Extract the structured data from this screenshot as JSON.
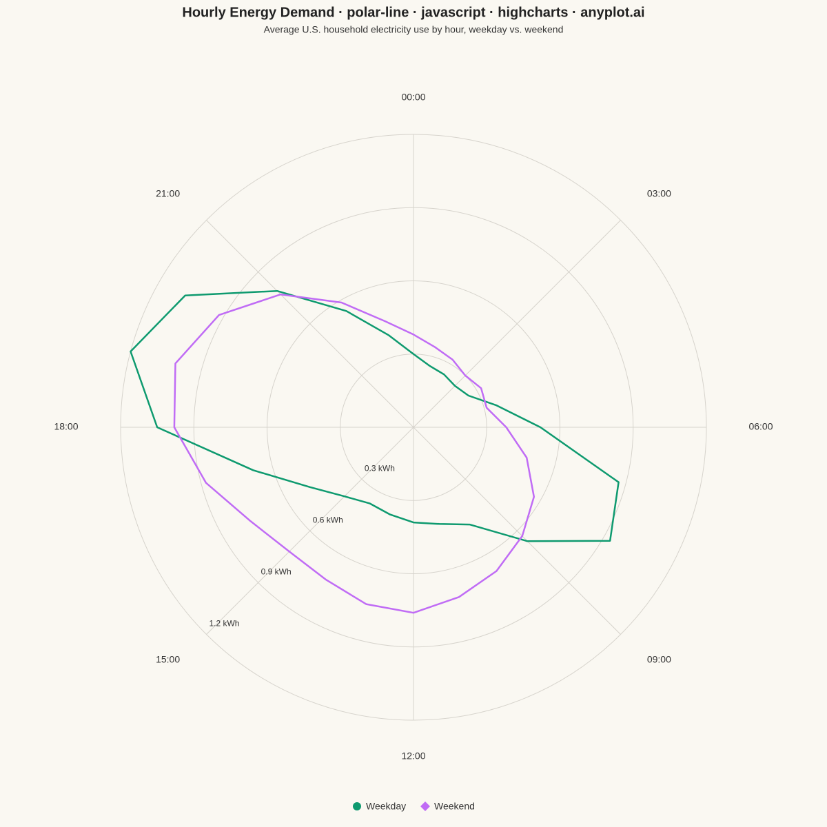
{
  "chart_data": {
    "type": "polar-line",
    "title": "Hourly Energy Demand · polar-line · javascript · highcharts · anyplot.ai",
    "subtitle": "Average U.S. household electricity use by hour, weekday vs. weekend",
    "categories": [
      "00:00",
      null,
      null,
      "03:00",
      null,
      null,
      "06:00",
      null,
      null,
      "09:00",
      null,
      null,
      "12:00",
      null,
      null,
      "15:00",
      null,
      null,
      "18:00",
      null,
      null,
      "21:00",
      null,
      null
    ],
    "series": [
      {
        "name": "Weekday",
        "color": "#0e9a6f",
        "values": [
          0.3,
          0.26,
          0.25,
          0.24,
          0.26,
          0.35,
          0.52,
          0.87,
          0.93,
          0.66,
          0.46,
          0.41,
          0.39,
          0.37,
          0.36,
          0.4,
          0.49,
          0.68,
          1.05,
          1.2,
          1.08,
          0.79,
          0.55,
          0.39
        ]
      },
      {
        "name": "Weekend",
        "color": "#c06cf5",
        "values": [
          0.38,
          0.34,
          0.32,
          0.3,
          0.32,
          0.31,
          0.38,
          0.48,
          0.57,
          0.63,
          0.68,
          0.72,
          0.76,
          0.75,
          0.72,
          0.72,
          0.77,
          0.88,
          0.98,
          1.01,
          0.92,
          0.77,
          0.59,
          0.45
        ]
      }
    ],
    "ylim": [
      0,
      1.2
    ],
    "yticks": [
      {
        "value": 0.3,
        "label": "0.3 kWh"
      },
      {
        "value": 0.6,
        "label": "0.6 kWh"
      },
      {
        "value": 0.9,
        "label": "0.9 kWh"
      },
      {
        "value": 1.2,
        "label": "1.2 kWh"
      }
    ],
    "grid": true
  }
}
